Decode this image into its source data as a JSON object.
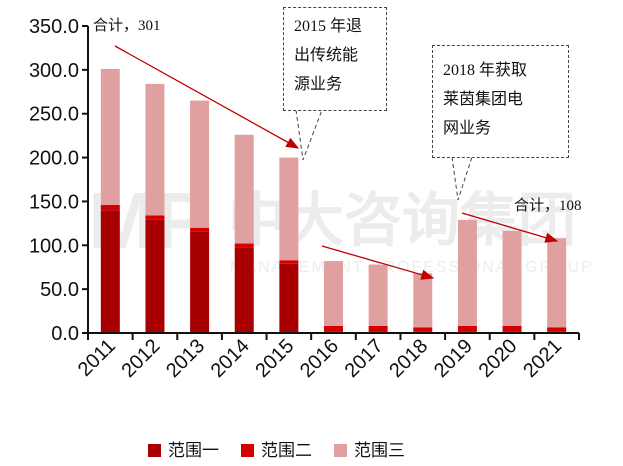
{
  "chart_data": {
    "type": "bar",
    "stacked": true,
    "categories": [
      "2011",
      "2012",
      "2013",
      "2014",
      "2015",
      "2016",
      "2017",
      "2018",
      "2019",
      "2020",
      "2021"
    ],
    "series": [
      {
        "name": "范围一",
        "color": "#a80000",
        "values": [
          140,
          129,
          116,
          97,
          79,
          2,
          2,
          1.5,
          2,
          2,
          1.5
        ]
      },
      {
        "name": "范围二",
        "color": "#d40000",
        "values": [
          6,
          5,
          4,
          5,
          4,
          6,
          6,
          5,
          6,
          6,
          5
        ]
      },
      {
        "name": "范围三",
        "color": "#e0a0a0",
        "values": [
          155,
          150,
          145,
          124,
          117,
          74,
          70,
          61.5,
          121,
          108.5,
          101.5
        ]
      }
    ],
    "ylim": [
      0,
      350
    ],
    "yticks": [
      "0.0",
      "50.0",
      "100.0",
      "150.0",
      "200.0",
      "250.0",
      "300.0",
      "350.0"
    ],
    "grid": false,
    "legend": "bottom",
    "annotations": {
      "total_2011": "合计，301",
      "total_2021": "合计，108",
      "callout_2015": [
        "2015 年退",
        "出传统能",
        "源业务"
      ],
      "callout_2018": [
        "2018 年获取",
        "莱茵集团电",
        "网业务"
      ]
    }
  },
  "watermark": {
    "logo": "MP",
    "cn": "中大咨询集团",
    "en": "MANAGEMENT PROFESSIONAL GROUP"
  }
}
